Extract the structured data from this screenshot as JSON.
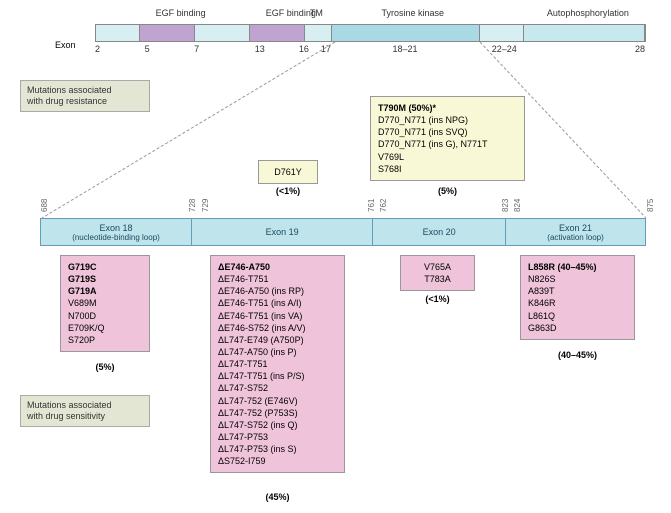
{
  "colors": {
    "bar_light": "#d7eef2",
    "bar_egf": "#c0a4cf",
    "bar_tk": "#a9d9e4",
    "bar_auto": "#c8e8ef",
    "zoom_bg": "#bfe4ec",
    "resist_bg": "#f9f8d6",
    "sens_bg": "#efc3d9",
    "side_bg": "#e4e6d4"
  },
  "top_bar": {
    "exon_axis_label": "Exon",
    "domains": [
      {
        "label": "EGF binding",
        "start_pct": 0,
        "end_pct": 8,
        "color_key": "bar_light"
      },
      {
        "label": "",
        "start_pct": 8,
        "end_pct": 18,
        "color_key": "bar_egf"
      },
      {
        "label": "",
        "start_pct": 18,
        "end_pct": 28,
        "color_key": "bar_light"
      },
      {
        "label": "EGF binding",
        "start_pct": 28,
        "end_pct": 38,
        "color_key": "bar_egf"
      },
      {
        "label": "TM",
        "start_pct": 38,
        "end_pct": 43,
        "color_key": "bar_light"
      },
      {
        "label": "Tyrosine kinase",
        "start_pct": 43,
        "end_pct": 70,
        "color_key": "bar_tk"
      },
      {
        "label": "",
        "start_pct": 70,
        "end_pct": 78,
        "color_key": "bar_light"
      },
      {
        "label": "Autophosphorylation",
        "start_pct": 78,
        "end_pct": 100,
        "color_key": "bar_auto"
      }
    ],
    "labels_above": [
      {
        "text": "EGF binding",
        "pct": 11
      },
      {
        "text": "EGF binding",
        "pct": 31
      },
      {
        "text": "TM",
        "pct": 39
      },
      {
        "text": "Tyrosine kinase",
        "pct": 52
      },
      {
        "text": "Autophosphorylation",
        "pct": 82
      }
    ],
    "exon_ticks": [
      {
        "text": "2",
        "pct": 0
      },
      {
        "text": "5",
        "pct": 9
      },
      {
        "text": "7",
        "pct": 18
      },
      {
        "text": "13",
        "pct": 29
      },
      {
        "text": "16",
        "pct": 37
      },
      {
        "text": "17",
        "pct": 41
      },
      {
        "text": "18–21",
        "pct": 54
      },
      {
        "text": "22–24",
        "pct": 72
      },
      {
        "text": "28",
        "pct": 98
      }
    ]
  },
  "side_labels": {
    "resist": "Mutations associated\nwith drug resistance",
    "sens": "Mutations associated\nwith drug sensitivity"
  },
  "resist_boxes": {
    "exon19": {
      "items": [
        "D761Y"
      ],
      "pct": "(<1%)"
    },
    "exon20": {
      "items": [
        "T790M (50%)*",
        "D770_N771 (ins NPG)",
        "D770_N771 (ins SVQ)",
        "D770_N771 (ins G), N771T",
        "V769L",
        "S768I"
      ],
      "bold_first": true,
      "pct": "(5%)"
    }
  },
  "zoom": {
    "residue_ticks": [
      {
        "text": "688",
        "pct": 0
      },
      {
        "text": "728",
        "pct": 24.5
      },
      {
        "text": "729",
        "pct": 26.5
      },
      {
        "text": "761",
        "pct": 54
      },
      {
        "text": "762",
        "pct": 56
      },
      {
        "text": "823",
        "pct": 76
      },
      {
        "text": "824",
        "pct": 78
      },
      {
        "text": "875",
        "pct": 100
      }
    ],
    "segments": [
      {
        "title": "Exon 18",
        "sub": "(nucleotide-binding loop)",
        "start_pct": 0,
        "end_pct": 25
      },
      {
        "title": "Exon 19",
        "sub": "",
        "start_pct": 25,
        "end_pct": 55
      },
      {
        "title": "Exon 20",
        "sub": "",
        "start_pct": 55,
        "end_pct": 77
      },
      {
        "title": "Exon 21",
        "sub": "(activation loop)",
        "start_pct": 77,
        "end_pct": 100
      }
    ]
  },
  "sens_boxes": {
    "exon18": {
      "items": [
        "G719C",
        "G719S",
        "G719A",
        "V689M",
        "N700D",
        "E709K/Q",
        "S720P"
      ],
      "bold_count": 3,
      "pct": "(5%)"
    },
    "exon19": {
      "items": [
        "ΔE746-A750",
        "ΔE746-T751",
        "ΔE746-A750 (ins RP)",
        "ΔE746-T751 (ins A/I)",
        "ΔE746-T751 (ins VA)",
        "ΔE746-S752 (ins A/V)",
        "ΔL747-E749 (A750P)",
        "ΔL747-A750 (ins P)",
        "ΔL747-T751",
        "ΔL747-T751 (ins P/S)",
        "ΔL747-S752",
        "ΔL747-752 (E746V)",
        "ΔL747-752 (P753S)",
        "ΔL747-S752 (ins Q)",
        "ΔL747-P753",
        "ΔL747-P753 (ins S)",
        "ΔS752-I759"
      ],
      "bold_count": 1,
      "pct": "(45%)"
    },
    "exon20": {
      "items": [
        "V765A",
        "T783A"
      ],
      "bold_count": 0,
      "pct": "(<1%)"
    },
    "exon21": {
      "items": [
        "L858R (40–45%)",
        "N826S",
        "A839T",
        "K846R",
        "L861Q",
        "G863D"
      ],
      "bold_count": 1,
      "pct": "(40–45%)"
    }
  }
}
